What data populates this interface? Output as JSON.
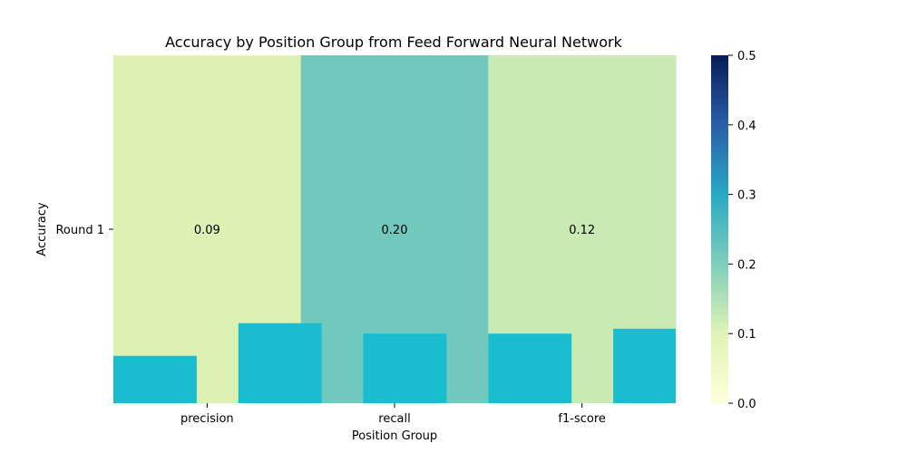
{
  "chart_data": {
    "type": "heatmap",
    "title": "Accuracy by Position Group from Feed Forward Neural Network",
    "xlabel": "Position Group",
    "ylabel": "Accuracy",
    "columns": [
      "precision",
      "recall",
      "f1-score"
    ],
    "rows": [
      "Round 1"
    ],
    "values": [
      [
        0.09,
        0.2,
        0.12
      ]
    ],
    "annotations": [
      "0.09",
      "0.20",
      "0.12"
    ],
    "colorbar": {
      "min": 0.0,
      "max": 0.5,
      "ticks": [
        "0.0",
        "0.1",
        "0.2",
        "0.3",
        "0.4",
        "0.5"
      ],
      "colormap": "YlGnBu"
    },
    "overlay_bars": {
      "color": "#1abdd0",
      "heights_data": [
        0.068,
        0.115,
        0.1,
        0.1,
        0.107
      ]
    }
  }
}
